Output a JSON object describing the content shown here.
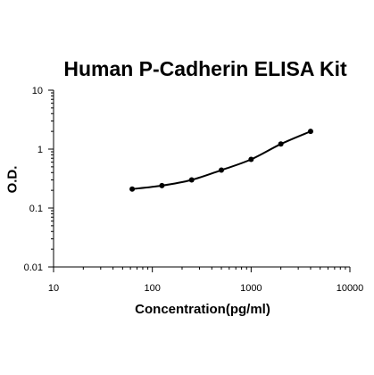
{
  "chart_data": {
    "type": "line",
    "title": "Human P-Cadherin ELISA Kit",
    "xlabel": "Concentration(pg/ml)",
    "ylabel": "O.D.",
    "x_scale": "log",
    "y_scale": "log",
    "xlim": [
      10,
      10000
    ],
    "ylim": [
      0.01,
      10
    ],
    "x_ticks": [
      "10",
      "100",
      "1000",
      "10000"
    ],
    "y_ticks": [
      "0.01",
      "0.1",
      "1",
      "10"
    ],
    "grid": false,
    "series": [
      {
        "x": [
          62.5,
          125,
          250,
          500,
          1000,
          2000,
          4000
        ],
        "y": [
          0.21,
          0.24,
          0.3,
          0.44,
          0.67,
          1.22,
          2.0
        ]
      }
    ],
    "colors": {
      "line": "#000000",
      "marker": "#000000",
      "axis": "#000000"
    }
  }
}
